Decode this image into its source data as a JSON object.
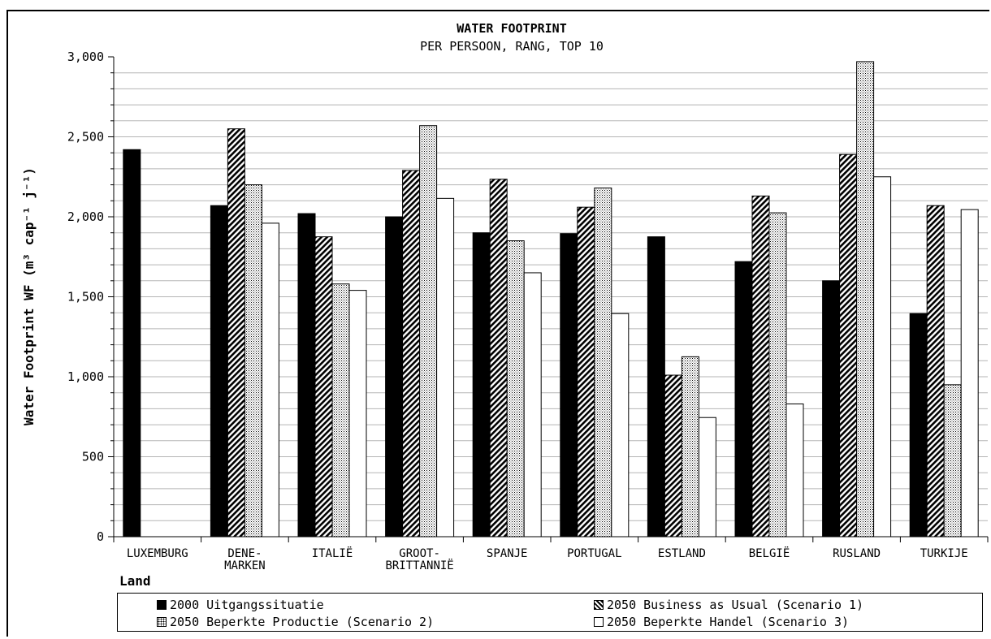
{
  "chart_data": {
    "type": "bar",
    "title": "WATER FOOTPRINT",
    "subtitle": "PER PERSOON, RANG, TOP 10",
    "xlabel": "Land",
    "ylabel": "Water Footprint WF (m³ cap⁻¹ j⁻¹)",
    "ylim": [
      0,
      3000
    ],
    "yticks": [
      0,
      500,
      1000,
      1500,
      2000,
      2500,
      3000
    ],
    "ytick_labels": [
      "0",
      "500",
      "1,000",
      "1,500",
      "2,000",
      "2,500",
      "3,000"
    ],
    "grid": true,
    "categories": [
      [
        "LUXEMBURG"
      ],
      [
        "DENE-",
        "MARKEN"
      ],
      [
        "ITALIË"
      ],
      [
        "GROOT-",
        "BRITTANNIË"
      ],
      [
        "SPANJE"
      ],
      [
        "PORTUGAL"
      ],
      [
        "ESTLAND"
      ],
      [
        "BELGIË"
      ],
      [
        "RUSLAND"
      ],
      [
        "TURKIJE"
      ]
    ],
    "series": [
      {
        "name": "2000 Uitgangssituatie",
        "pattern": "solid",
        "color": "#000000",
        "values": [
          2420,
          2070,
          2020,
          2000,
          1900,
          1895,
          1875,
          1720,
          1600,
          1395
        ]
      },
      {
        "name": "2050 Business as Usual (Scenario 1)",
        "pattern": "diagonal",
        "color": "#000000",
        "values": [
          null,
          2550,
          1875,
          2290,
          2235,
          2060,
          1010,
          2130,
          2390,
          2070
        ]
      },
      {
        "name": "2050 Beperkte Productie (Scenario 2)",
        "pattern": "dots",
        "color": "#000000",
        "values": [
          null,
          2200,
          1580,
          2570,
          1850,
          2180,
          1125,
          2025,
          2970,
          950
        ]
      },
      {
        "name": "2050 Beperkte Handel (Scenario 3)",
        "pattern": "hollow",
        "color": "#ffffff",
        "values": [
          null,
          1960,
          1540,
          2115,
          1650,
          1395,
          745,
          830,
          2250,
          2045
        ]
      }
    ],
    "legend_position": "bottom"
  }
}
